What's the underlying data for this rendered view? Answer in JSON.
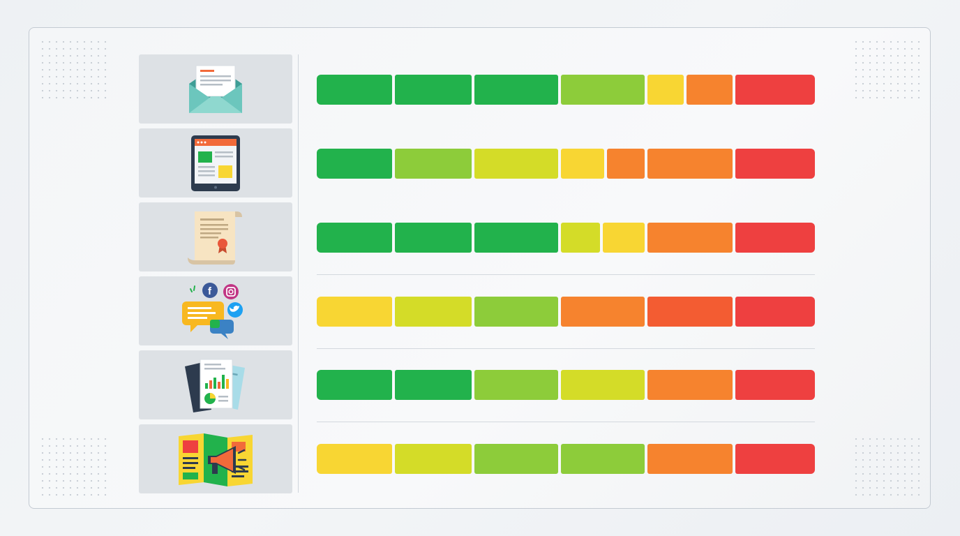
{
  "colors": {
    "green": "#22b24c",
    "light_green": "#8dcc3a",
    "lime": "#d4dc28",
    "yellow": "#f8d633",
    "orange": "#f6832e",
    "red_orange": "#f35c32",
    "red": "#ee4040"
  },
  "icons": [
    "envelope-icon",
    "tablet-webpage-icon",
    "scroll-certificate-icon",
    "social-media-chat-icon",
    "report-charts-icon",
    "brochure-megaphone-icon"
  ],
  "rows": [
    {
      "icon": "envelope-icon",
      "segments": [
        "green",
        "green",
        "green",
        "light_green",
        "yellow",
        "orange",
        "red"
      ]
    },
    {
      "icon": "tablet-webpage-icon",
      "segments": [
        "green",
        "light_green",
        "lime",
        "yellow",
        "orange",
        "orange",
        "red"
      ]
    },
    {
      "icon": "scroll-certificate-icon",
      "segments": [
        "green",
        "green",
        "green",
        "lime",
        "yellow",
        "orange",
        "red"
      ]
    },
    {
      "icon": "social-media-chat-icon",
      "segments": [
        "yellow",
        "lime",
        "light_green",
        "orange",
        "red_orange",
        "red_orange",
        "red"
      ]
    },
    {
      "icon": "report-charts-icon",
      "segments": [
        "green",
        "green",
        "light_green",
        "lime",
        "orange",
        "orange",
        "red"
      ]
    },
    {
      "icon": "brochure-megaphone-icon",
      "segments": [
        "yellow",
        "lime",
        "light_green",
        "light_green",
        "orange",
        "orange",
        "red"
      ]
    }
  ]
}
